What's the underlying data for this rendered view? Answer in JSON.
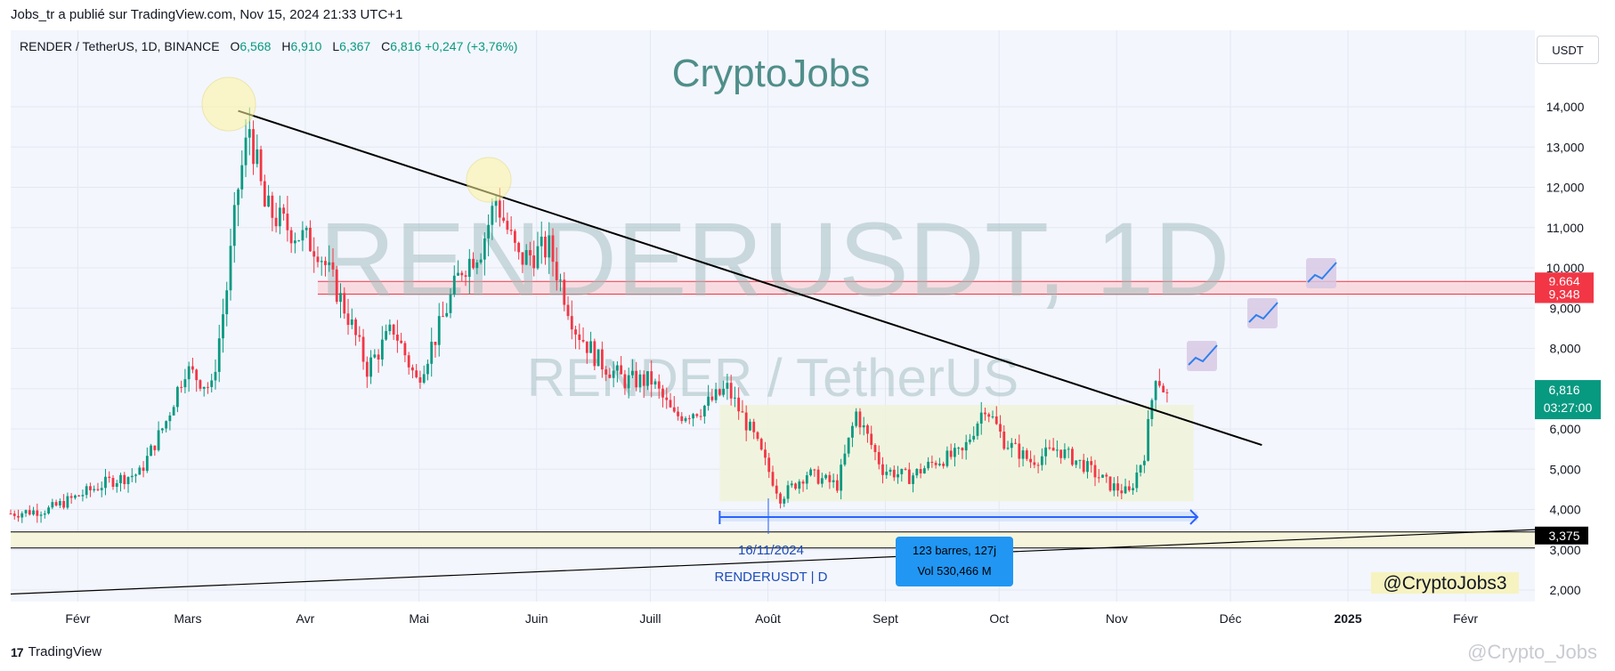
{
  "header": {
    "publisher_line": "Jobs_tr a publié sur TradingView.com, Nov 15, 2024 21:33 UTC+1"
  },
  "symbol": {
    "name": "RENDER / TetherUS, 1D, BINANCE",
    "open_label": "O",
    "open": "6,568",
    "high_label": "H",
    "high": "6,910",
    "low_label": "L",
    "low": "6,367",
    "close_label": "C",
    "close": "6,816",
    "change": "+0,247 (+3,76%)"
  },
  "currency_button": "USDT",
  "brand_title": "CryptoJobs",
  "watermark": {
    "line1": "RENDERUSDT, 1D",
    "line2": "RENDER / TetherUS"
  },
  "price_labels": {
    "upper": "9,664",
    "lower": "9,348",
    "current": "6,816",
    "countdown": "03:27:00",
    "support": "3,375"
  },
  "measure": {
    "bars": "123 barres, 127j",
    "volume": "Vol 530,466 M"
  },
  "date_label": "16/11/2024",
  "ticker_label": "RENDERUSDT | D",
  "handle": "@CryptoJobs3",
  "footer": {
    "brand": "TradingView",
    "watermark": "@Crypto_Jobs"
  },
  "colors": {
    "up": "#089981",
    "down": "#f23645",
    "trendline": "#000000",
    "range_box": "#eef3d9",
    "resistance": "#f23645",
    "measure": "#2962ff"
  },
  "chart_data": {
    "type": "candlestick",
    "title": "RENDERUSDT, 1D",
    "ylim": [
      2000,
      14000
    ],
    "y_ticks": [
      "2,000",
      "3,000",
      "4,000",
      "5,000",
      "6,000",
      "7,000",
      "8,000",
      "9,000",
      "10,000",
      "11,000",
      "12,000",
      "13,000",
      "14,000"
    ],
    "x_ticks": [
      "Févr",
      "Mars",
      "Avr",
      "Mai",
      "Juin",
      "Juill",
      "Août",
      "Sept",
      "Oct",
      "Nov",
      "Déc",
      "2025",
      "Févr"
    ],
    "grid": true,
    "series": [
      {
        "name": "RENDER / TetherUS",
        "points": [
          [
            "2024-01-15",
            3.9
          ],
          [
            "2024-01-25",
            4.0
          ],
          [
            "2024-02-01",
            4.3
          ],
          [
            "2024-02-10",
            4.7
          ],
          [
            "2024-02-18",
            4.9
          ],
          [
            "2024-02-25",
            6.2
          ],
          [
            "2024-03-01",
            7.5
          ],
          [
            "2024-03-08",
            7.0
          ],
          [
            "2024-03-12",
            9.5
          ],
          [
            "2024-03-15",
            12.0
          ],
          [
            "2024-03-18",
            13.5
          ],
          [
            "2024-03-22",
            11.5
          ],
          [
            "2024-03-28",
            11.0
          ],
          [
            "2024-04-05",
            10.5
          ],
          [
            "2024-04-13",
            8.8
          ],
          [
            "2024-04-18",
            7.5
          ],
          [
            "2024-04-25",
            8.5
          ],
          [
            "2024-05-01",
            7.2
          ],
          [
            "2024-05-07",
            8.5
          ],
          [
            "2024-05-13",
            10.0
          ],
          [
            "2024-05-18",
            10.5
          ],
          [
            "2024-05-22",
            11.7
          ],
          [
            "2024-05-28",
            10.2
          ],
          [
            "2024-06-05",
            10.5
          ],
          [
            "2024-06-12",
            8.5
          ],
          [
            "2024-06-18",
            7.7
          ],
          [
            "2024-06-25",
            7.2
          ],
          [
            "2024-07-02",
            7.2
          ],
          [
            "2024-07-08",
            6.3
          ],
          [
            "2024-07-15",
            6.5
          ],
          [
            "2024-07-22",
            7.0
          ],
          [
            "2024-07-29",
            5.8
          ],
          [
            "2024-08-05",
            4.3
          ],
          [
            "2024-08-12",
            4.9
          ],
          [
            "2024-08-20",
            4.6
          ],
          [
            "2024-08-25",
            6.4
          ],
          [
            "2024-09-01",
            5.0
          ],
          [
            "2024-09-08",
            4.8
          ],
          [
            "2024-09-15",
            5.2
          ],
          [
            "2024-09-22",
            5.4
          ],
          [
            "2024-09-28",
            6.6
          ],
          [
            "2024-10-03",
            5.7
          ],
          [
            "2024-10-10",
            5.2
          ],
          [
            "2024-10-17",
            5.5
          ],
          [
            "2024-10-24",
            5.1
          ],
          [
            "2024-10-31",
            4.6
          ],
          [
            "2024-11-05",
            4.4
          ],
          [
            "2024-11-09",
            5.4
          ],
          [
            "2024-11-12",
            7.4
          ],
          [
            "2024-11-15",
            6.816
          ]
        ]
      }
    ],
    "annotations": {
      "trendline_descending": [
        [
          "2024-03-15",
          13.9
        ],
        [
          "2024-12-10",
          5.6
        ]
      ],
      "trendline_ascending": [
        [
          "2024-01-15",
          1.9
        ],
        [
          "2025-02-20",
          3.5
        ]
      ],
      "resistance_zone": [
        9.348,
        9.664
      ],
      "range_box": [
        4.2,
        6.6
      ],
      "support_level": 3.375,
      "measure_range": [
        "2024-07-20",
        "2024-11-23"
      ]
    }
  }
}
